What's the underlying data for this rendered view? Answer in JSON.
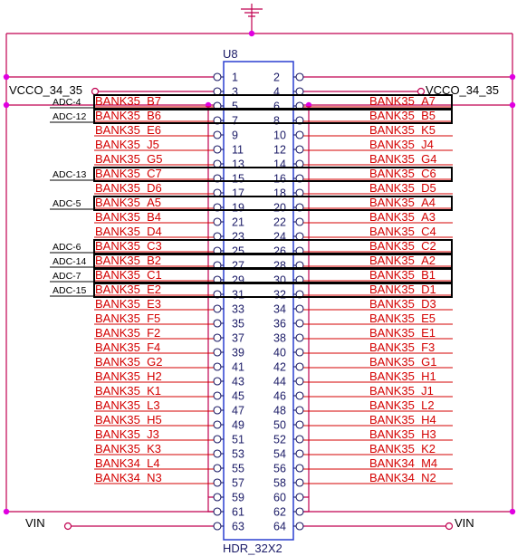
{
  "refdes": "U8",
  "part_value": "HDR_32X2",
  "power_left": "VCCO_34_35",
  "power_right": "VCCO_34_35",
  "vin_left": "VIN",
  "vin_right": "VIN",
  "rows": [
    {
      "l": "1",
      "r": "2",
      "lnet": "",
      "rnet": "",
      "adc": ""
    },
    {
      "l": "3",
      "r": "4",
      "lnet": "",
      "rnet": "",
      "adc": ""
    },
    {
      "l": "5",
      "r": "6",
      "lnet": "BANK35_B7",
      "rnet": "BANK35_A7",
      "adc": "ADC-4"
    },
    {
      "l": "7",
      "r": "8",
      "lnet": "BANK35_B6",
      "rnet": "BANK35_B5",
      "adc": "ADC-12"
    },
    {
      "l": "9",
      "r": "10",
      "lnet": "BANK35_E6",
      "rnet": "BANK35_K5",
      "adc": ""
    },
    {
      "l": "11",
      "r": "12",
      "lnet": "BANK35_J5",
      "rnet": "BANK35_J4",
      "adc": ""
    },
    {
      "l": "13",
      "r": "14",
      "lnet": "BANK35_G5",
      "rnet": "BANK35_G4",
      "adc": ""
    },
    {
      "l": "15",
      "r": "16",
      "lnet": "BANK35_C7",
      "rnet": "BANK35_C6",
      "adc": "ADC-13"
    },
    {
      "l": "17",
      "r": "18",
      "lnet": "BANK35_D6",
      "rnet": "BANK35_D5",
      "adc": ""
    },
    {
      "l": "19",
      "r": "20",
      "lnet": "BANK35_A5",
      "rnet": "BANK35_A4",
      "adc": "ADC-5"
    },
    {
      "l": "21",
      "r": "22",
      "lnet": "BANK35_B4",
      "rnet": "BANK35_A3",
      "adc": ""
    },
    {
      "l": "23",
      "r": "24",
      "lnet": "BANK35_D4",
      "rnet": "BANK35_C4",
      "adc": ""
    },
    {
      "l": "25",
      "r": "26",
      "lnet": "BANK35_C3",
      "rnet": "BANK35_C2",
      "adc": "ADC-6"
    },
    {
      "l": "27",
      "r": "28",
      "lnet": "BANK35_B2",
      "rnet": "BANK35_A2",
      "adc": "ADC-14"
    },
    {
      "l": "29",
      "r": "30",
      "lnet": "BANK35_C1",
      "rnet": "BANK35_B1",
      "adc": "ADC-7"
    },
    {
      "l": "31",
      "r": "32",
      "lnet": "BANK35_E2",
      "rnet": "BANK35_D1",
      "adc": "ADC-15"
    },
    {
      "l": "33",
      "r": "34",
      "lnet": "BANK35_E3",
      "rnet": "BANK35_D3",
      "adc": ""
    },
    {
      "l": "35",
      "r": "36",
      "lnet": "BANK35_F5",
      "rnet": "BANK35_E5",
      "adc": ""
    },
    {
      "l": "37",
      "r": "38",
      "lnet": "BANK35_F2",
      "rnet": "BANK35_E1",
      "adc": ""
    },
    {
      "l": "39",
      "r": "40",
      "lnet": "BANK35_F4",
      "rnet": "BANK35_F3",
      "adc": ""
    },
    {
      "l": "41",
      "r": "42",
      "lnet": "BANK35_G2",
      "rnet": "BANK35_G1",
      "adc": ""
    },
    {
      "l": "43",
      "r": "44",
      "lnet": "BANK35_H2",
      "rnet": "BANK35_H1",
      "adc": ""
    },
    {
      "l": "45",
      "r": "46",
      "lnet": "BANK35_K1",
      "rnet": "BANK35_J1",
      "adc": ""
    },
    {
      "l": "47",
      "r": "48",
      "lnet": "BANK35_L3",
      "rnet": "BANK35_L2",
      "adc": ""
    },
    {
      "l": "49",
      "r": "50",
      "lnet": "BANK35_H5",
      "rnet": "BANK35_H4",
      "adc": ""
    },
    {
      "l": "51",
      "r": "52",
      "lnet": "BANK35_J3",
      "rnet": "BANK35_H3",
      "adc": ""
    },
    {
      "l": "53",
      "r": "54",
      "lnet": "BANK35_K3",
      "rnet": "BANK35_K2",
      "adc": ""
    },
    {
      "l": "55",
      "r": "56",
      "lnet": "BANK34_L4",
      "rnet": "BANK34_M4",
      "adc": ""
    },
    {
      "l": "57",
      "r": "58",
      "lnet": "BANK34_N3",
      "rnet": "BANK34_N2",
      "adc": ""
    },
    {
      "l": "59",
      "r": "60",
      "lnet": "",
      "rnet": "",
      "adc": ""
    },
    {
      "l": "61",
      "r": "62",
      "lnet": "",
      "rnet": "",
      "adc": ""
    },
    {
      "l": "63",
      "r": "64",
      "lnet": "",
      "rnet": "",
      "adc": ""
    }
  ],
  "colors": {
    "net": "#d40000",
    "frame": "#c00050",
    "body": "#2a3fd0",
    "pin": "#1a1a66",
    "power": "#000000",
    "highlight": "#000000",
    "junction": "#e000e0"
  }
}
